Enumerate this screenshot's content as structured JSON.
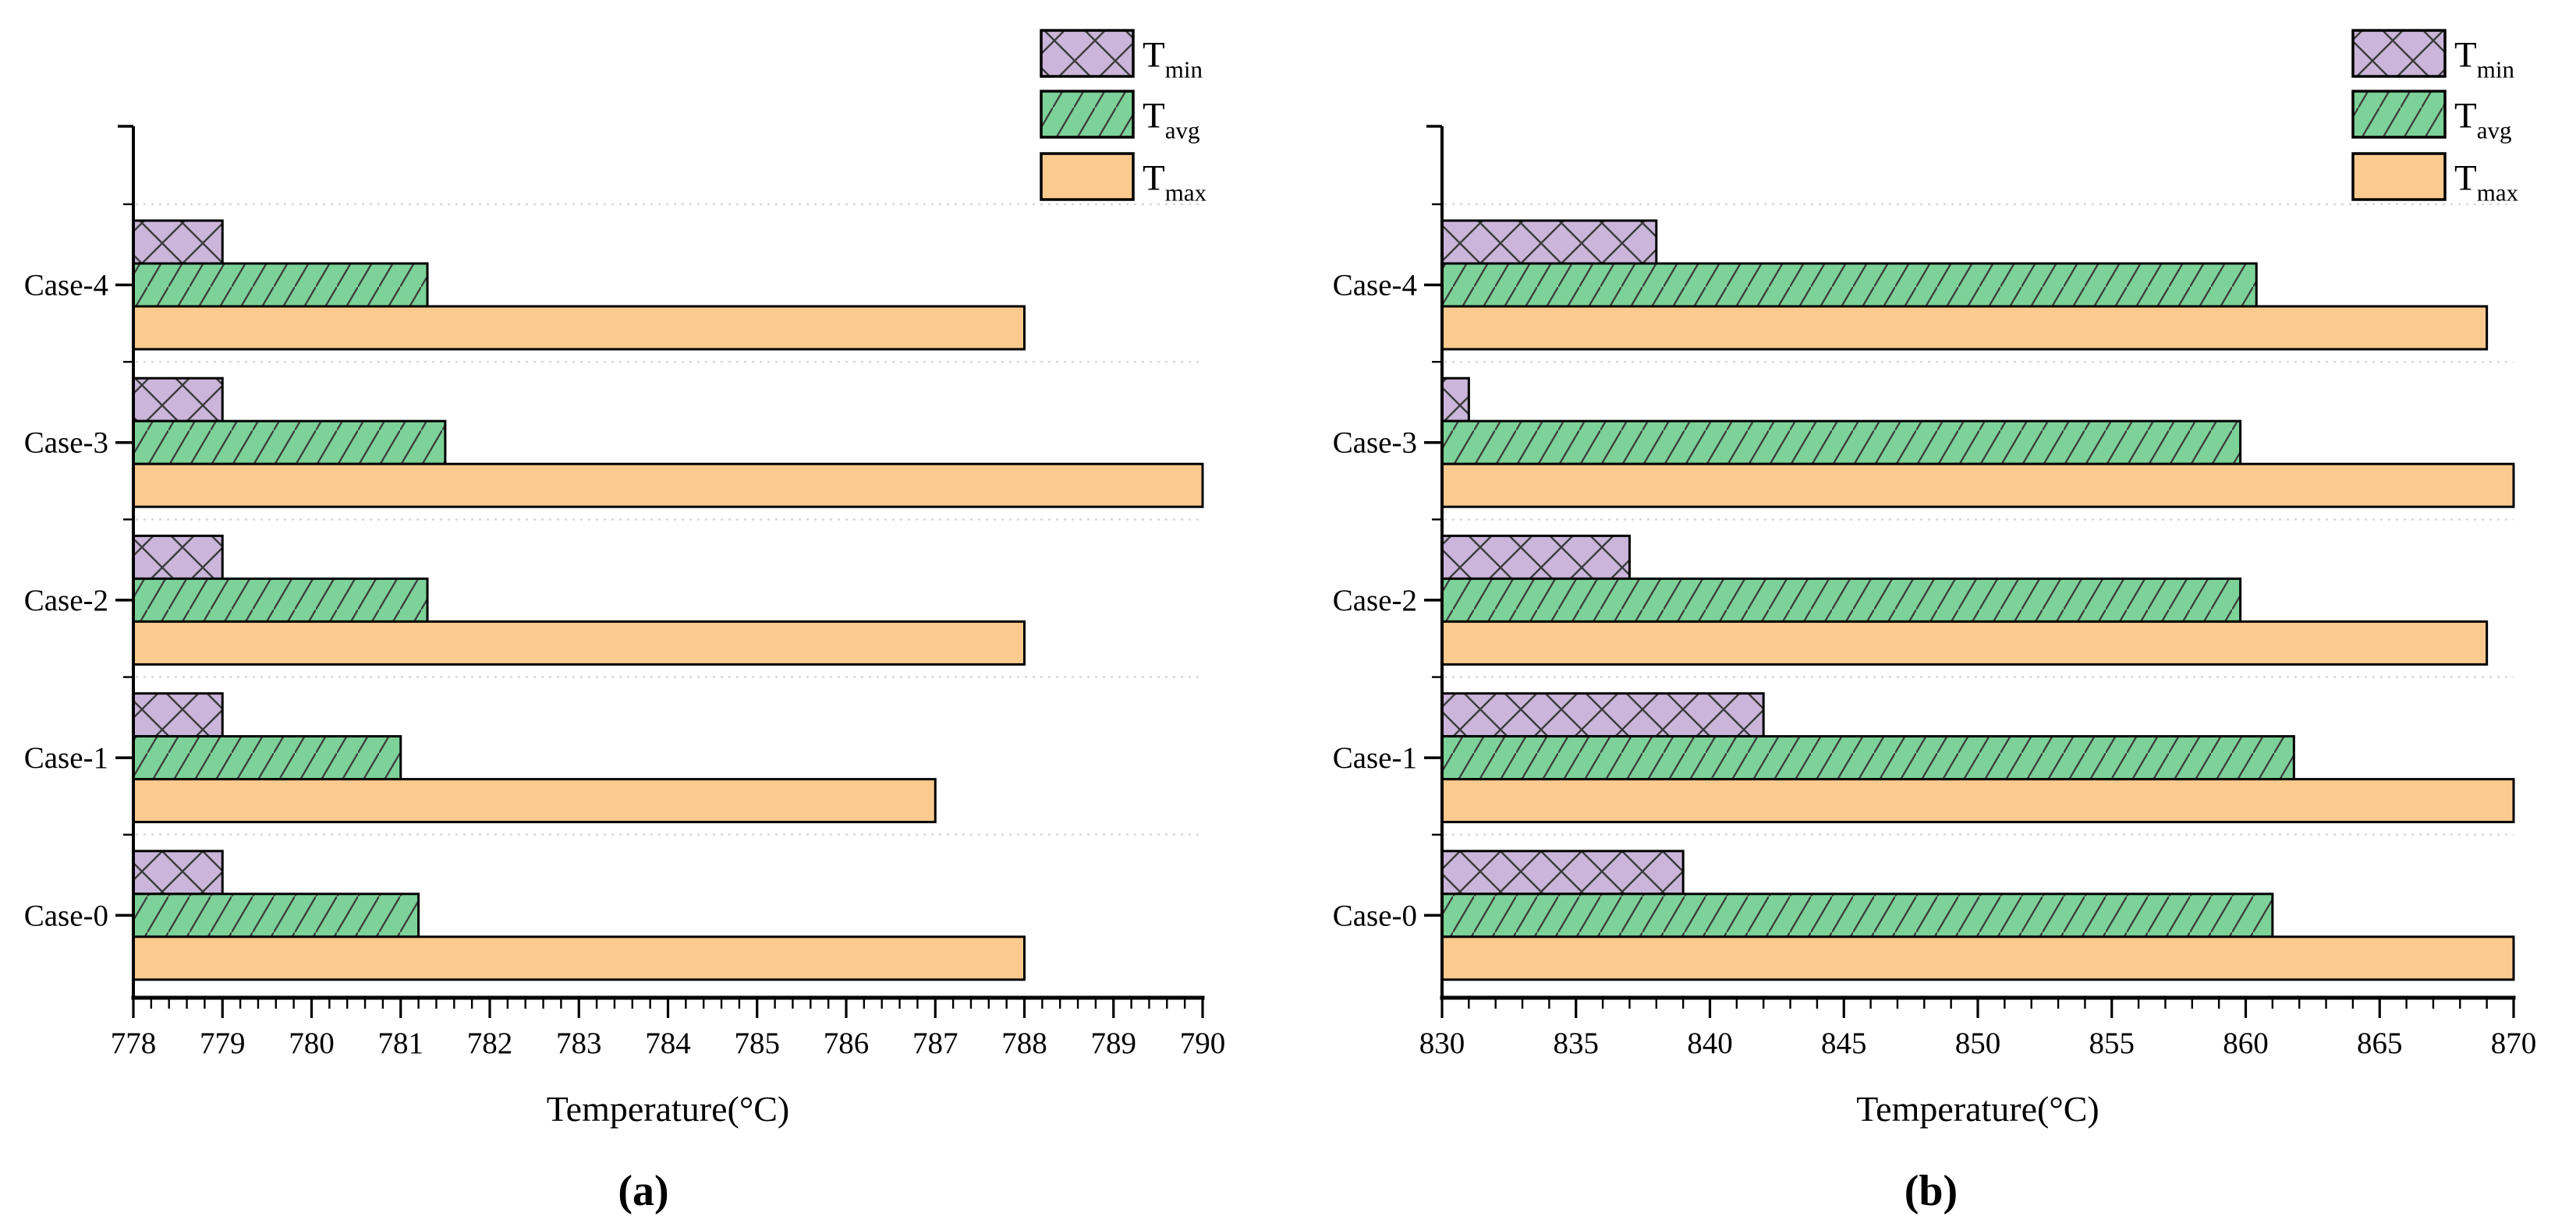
{
  "figure": {
    "background": "#ffffff",
    "colors": {
      "tmin_fill": "#cbb5da",
      "tavg_fill": "#7cd298",
      "tmax_fill": "#fbca8e",
      "bar_edge": "#000000",
      "hatch_line": "#3c3c3c",
      "gridline": "#d8d8d8",
      "axis": "#000000",
      "text": "#000000"
    }
  },
  "chart_data": [
    {
      "type": "bar",
      "orientation": "horizontal",
      "panel_caption": "(a)",
      "xlabel": "Temperature(°C)",
      "xlim": [
        778,
        790
      ],
      "x_major_tick_step": 1,
      "x_minor_tick_step": 0.2,
      "x_tick_labels": [
        "778",
        "779",
        "780",
        "781",
        "782",
        "783",
        "784",
        "785",
        "786",
        "787",
        "788",
        "789",
        "790"
      ],
      "categories_top_to_bottom": [
        "Case-4",
        "Case-3",
        "Case-2",
        "Case-1",
        "Case-0"
      ],
      "grid": "dotted horizontal lines between case groups",
      "legend_position": "top-right",
      "series": [
        {
          "name": "Tmin",
          "legend_main": "T",
          "legend_sub": "min",
          "style": "crosshatch",
          "fill": "#cbb5da",
          "values_top_to_bottom": [
            779,
            779,
            779,
            779,
            779
          ]
        },
        {
          "name": "Tavg",
          "legend_main": "T",
          "legend_sub": "avg",
          "style": "diagonal-hatch",
          "fill": "#7cd298",
          "values_top_to_bottom": [
            781.3,
            781.5,
            781.3,
            781.0,
            781.2
          ]
        },
        {
          "name": "Tmax",
          "legend_main": "T",
          "legend_sub": "max",
          "style": "solid",
          "fill": "#fbca8e",
          "values_top_to_bottom": [
            788,
            790,
            788,
            787,
            788
          ]
        }
      ]
    },
    {
      "type": "bar",
      "orientation": "horizontal",
      "panel_caption": "(b)",
      "xlabel": "Temperature(°C)",
      "xlim": [
        830,
        870
      ],
      "x_major_tick_step": 5,
      "x_minor_tick_step": 1,
      "x_tick_labels": [
        "830",
        "835",
        "840",
        "845",
        "850",
        "855",
        "860",
        "865",
        "870"
      ],
      "categories_top_to_bottom": [
        "Case-4",
        "Case-3",
        "Case-2",
        "Case-1",
        "Case-0"
      ],
      "grid": "dotted horizontal lines between case groups",
      "legend_position": "top-right",
      "series": [
        {
          "name": "Tmin",
          "legend_main": "T",
          "legend_sub": "min",
          "style": "crosshatch",
          "fill": "#cbb5da",
          "values_top_to_bottom": [
            838,
            831,
            837,
            842,
            839
          ]
        },
        {
          "name": "Tavg",
          "legend_main": "T",
          "legend_sub": "avg",
          "style": "diagonal-hatch",
          "fill": "#7cd298",
          "values_top_to_bottom": [
            860.4,
            859.8,
            859.8,
            861.8,
            861.0
          ]
        },
        {
          "name": "Tmax",
          "legend_main": "T",
          "legend_sub": "max",
          "style": "solid",
          "fill": "#fbca8e",
          "values_top_to_bottom": [
            869,
            870,
            869,
            870,
            870
          ]
        }
      ]
    }
  ]
}
